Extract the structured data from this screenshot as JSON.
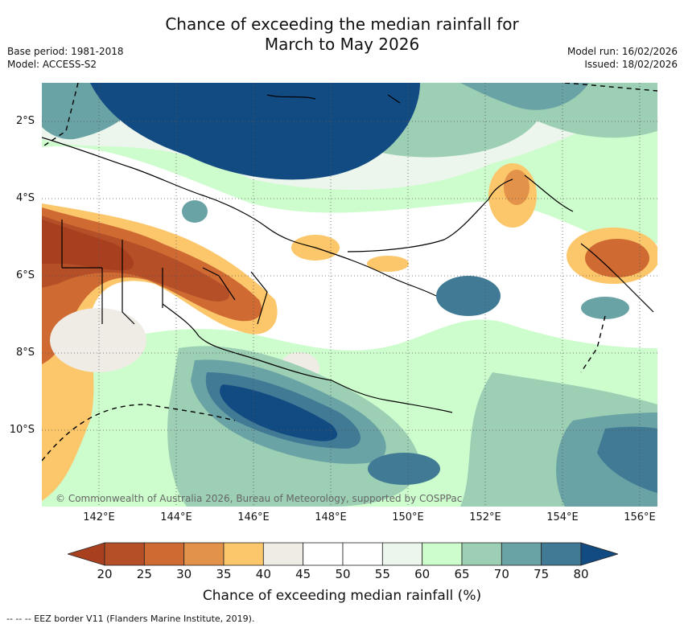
{
  "title": {
    "line1": "Chance of exceeding the median rainfall for",
    "line2": "March to May 2026"
  },
  "meta": {
    "base_period": "Base period: 1981-2018",
    "model": "Model: ACCESS-S2",
    "model_run": "Model run: 16/02/2026",
    "issued": "Issued: 18/02/2026"
  },
  "map": {
    "lat_labels": [
      "2°S",
      "4°S",
      "6°S",
      "8°S",
      "10°S"
    ],
    "lon_labels": [
      "142°E",
      "144°E",
      "146°E",
      "148°E",
      "150°E",
      "152°E",
      "154°E",
      "156°E"
    ],
    "copyright": "© Commonwealth of Australia 2026, Bureau of Meteorology, supported by COSPPac",
    "colors": {
      "c20": "#a8401f",
      "c25": "#b54f28",
      "c30": "#cf6a33",
      "c35": "#e3924a",
      "c40": "#fcc66a",
      "c45": "#efece6",
      "c50": "#ffffff",
      "c55": "#ffffff",
      "c60": "#ecf6ec",
      "c65": "#cdfccd",
      "c70": "#9ccfb4",
      "c75": "#6aa3a5",
      "c80": "#407a95",
      "c85": "#124a82"
    }
  },
  "colorbar": {
    "ticks": [
      "20",
      "25",
      "30",
      "35",
      "40",
      "45",
      "50",
      "55",
      "60",
      "65",
      "70",
      "75",
      "80"
    ],
    "segment_colors": [
      "#a8401f",
      "#b54f28",
      "#cf6a33",
      "#e3924a",
      "#fcc66a",
      "#efece6",
      "#ffffff",
      "#ffffff",
      "#ecf6ec",
      "#cdfccd",
      "#9ccfb4",
      "#6aa3a5",
      "#407a95",
      "#124a82"
    ],
    "title": "Chance of exceeding median rainfall (%)"
  },
  "footnote": "--  --  -- EEZ border V11 (Flanders Marine Institute, 2019)."
}
